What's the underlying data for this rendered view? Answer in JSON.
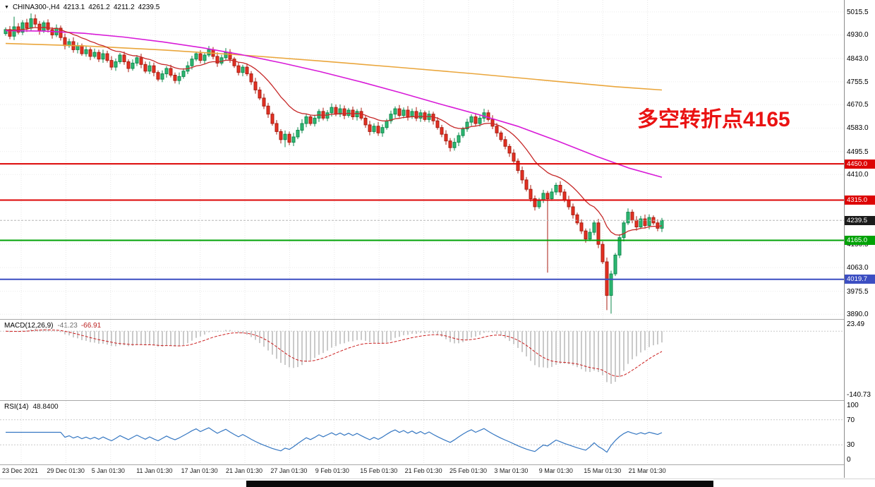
{
  "title_bar": {
    "dropdown_icon": "▼",
    "symbol_period": "CHINA300-,H4",
    "open": "4213.1",
    "high": "4261.2",
    "low": "4211.2",
    "close": "4239.5"
  },
  "annotation": {
    "text": "多空转折点4165",
    "color": "#ea1212"
  },
  "colors": {
    "up_fill": "#2eb872",
    "up_border": "#0f8a4e",
    "down_fill": "#e53022",
    "down_border": "#a81e12",
    "ma_fast": "#c62828",
    "ma_mid": "#d81bd8",
    "ma_slow": "#eaa63c",
    "macd_hist": "#bdbdbd",
    "macd_signal": "#cc2020",
    "rsi_line": "#3577c2",
    "current_line": "#b5b5b5"
  },
  "chart_data": {
    "type": "candlestick",
    "symbol": "CHINA300-",
    "timeframe": "H4",
    "x_labels": [
      "23 Dec 2021",
      "29 Dec 01:30",
      "5 Jan 01:30",
      "11 Jan 01:30",
      "17 Jan 01:30",
      "21 Jan 01:30",
      "27 Jan 01:30",
      "9 Feb 01:30",
      "15 Feb 01:30",
      "21 Feb 01:30",
      "25 Feb 01:30",
      "3 Mar 01:30",
      "9 Mar 01:30",
      "15 Mar 01:30",
      "21 Mar 01:30"
    ],
    "price_axis": {
      "min": 3872,
      "max": 5060,
      "ticks": [
        5015.5,
        4930.0,
        4843.0,
        4755.5,
        4670.5,
        4583.0,
        4495.5,
        4410.0,
        4150.5,
        4063.0,
        3975.5,
        3890.0
      ]
    },
    "h_lines": [
      {
        "price": 4450.0,
        "label": "4450.0",
        "color": "#dd0404"
      },
      {
        "price": 4315.0,
        "label": "4315.0",
        "color": "#dd0404"
      },
      {
        "price": 4165.0,
        "label": "4165.0",
        "color": "#00a206"
      },
      {
        "price": 4019.7,
        "label": "4019.7",
        "color": "#3c4ec2"
      }
    ],
    "current_price": {
      "value": 4239.5,
      "label": "4239.5",
      "color": "#1b1b1b"
    },
    "first_open": 4935,
    "closes": [
      4950,
      4925,
      4960,
      4940,
      4975,
      4955,
      4990,
      4970,
      4945,
      4975,
      4950,
      4930,
      4955,
      4920,
      4890,
      4905,
      4875,
      4890,
      4860,
      4875,
      4850,
      4865,
      4840,
      4860,
      4835,
      4810,
      4830,
      4855,
      4830,
      4805,
      4825,
      4845,
      4820,
      4795,
      4815,
      4790,
      4765,
      4785,
      4805,
      4780,
      4760,
      4775,
      4795,
      4815,
      4840,
      4860,
      4835,
      4855,
      4875,
      4850,
      4825,
      4845,
      4865,
      4840,
      4815,
      4790,
      4810,
      4785,
      4755,
      4725,
      4695,
      4665,
      4635,
      4600,
      4570,
      4540,
      4560,
      4530,
      4550,
      4575,
      4600,
      4625,
      4600,
      4620,
      4645,
      4620,
      4640,
      4660,
      4635,
      4655,
      4630,
      4650,
      4625,
      4645,
      4620,
      4595,
      4570,
      4590,
      4565,
      4585,
      4610,
      4635,
      4655,
      4630,
      4650,
      4625,
      4645,
      4620,
      4640,
      4615,
      4635,
      4610,
      4585,
      4560,
      4535,
      4510,
      4530,
      4555,
      4580,
      4605,
      4625,
      4600,
      4620,
      4640,
      4615,
      4590,
      4565,
      4540,
      4515,
      4490,
      4460,
      4425,
      4390,
      4355,
      4320,
      4290,
      4315,
      4340,
      4320,
      4345,
      4370,
      4345,
      4315,
      4290,
      4260,
      4230,
      4200,
      4170,
      4195,
      4230,
      4150,
      4085,
      3960,
      4040,
      4110,
      4175,
      4230,
      4270,
      4240,
      4215,
      4245,
      4220,
      4250,
      4230,
      4210,
      4239.5
    ],
    "wick_overrides": {
      "2": {
        "high": 4998
      },
      "6": {
        "high": 5010
      },
      "66": {
        "low": 4512
      },
      "105": {
        "low": 4496
      },
      "128": {
        "low": 4045
      },
      "137": {
        "low": 4156
      },
      "142": {
        "low": 3905
      },
      "143": {
        "low": 3892
      }
    },
    "overlays": {
      "ema_fast_period": 16,
      "magenta_anchors": [
        [
          0,
          4946
        ],
        [
          0.06,
          4944
        ],
        [
          0.12,
          4936
        ],
        [
          0.18,
          4922
        ],
        [
          0.24,
          4904
        ],
        [
          0.3,
          4882
        ],
        [
          0.36,
          4856
        ],
        [
          0.42,
          4826
        ],
        [
          0.48,
          4793
        ],
        [
          0.54,
          4756
        ],
        [
          0.6,
          4716
        ],
        [
          0.66,
          4674
        ],
        [
          0.72,
          4634
        ],
        [
          0.78,
          4590
        ],
        [
          0.84,
          4536
        ],
        [
          0.9,
          4478
        ],
        [
          0.95,
          4434
        ],
        [
          1,
          4400
        ]
      ],
      "orange_anchors": [
        [
          0,
          4898
        ],
        [
          0.12,
          4889
        ],
        [
          0.24,
          4874
        ],
        [
          0.36,
          4855
        ],
        [
          0.48,
          4833
        ],
        [
          0.6,
          4809
        ],
        [
          0.72,
          4784
        ],
        [
          0.84,
          4757
        ],
        [
          0.93,
          4737
        ],
        [
          1,
          4725
        ]
      ]
    },
    "indicators": {
      "macd": {
        "label": "MACD(12,26,9)",
        "value_main": "-41.23",
        "value_signal": "-66.91",
        "params": [
          12,
          26,
          9
        ],
        "axis": {
          "max": 23.49,
          "min": -140.73,
          "ticks": [
            "23.49",
            "-140.73"
          ]
        }
      },
      "rsi": {
        "label": "RSI(14)",
        "value": "48.8400",
        "period": 14,
        "axis": {
          "max": 100,
          "min": 0,
          "ticks": [
            100,
            70,
            30,
            0
          ],
          "levels": [
            70,
            30
          ]
        }
      }
    }
  }
}
